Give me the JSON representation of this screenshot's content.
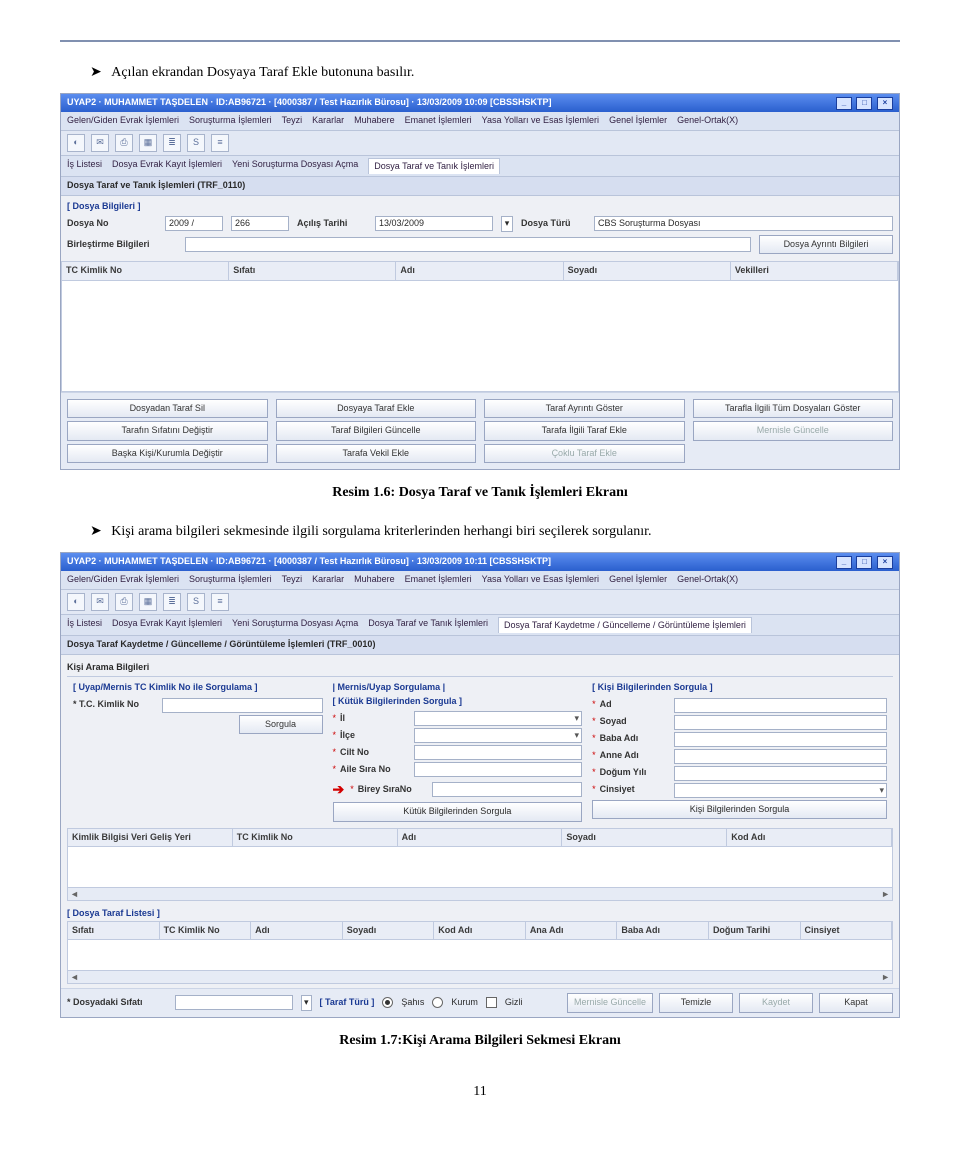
{
  "intro_bullet": "Açılan ekrandan Dosyaya Taraf Ekle butonuna basılır.",
  "caption1": "Resim 1.6: Dosya Taraf ve Tanık İşlemleri Ekranı",
  "mid_bullet": "Kişi arama bilgileri sekmesinde ilgili sorgulama kriterlerinden herhangi biri seçilerek sorgulanır.",
  "caption2": "Resim 1.7:Kişi Arama Bilgileri Sekmesi Ekranı",
  "page_number": "11",
  "s1": {
    "title": "UYAP2 · MUHAMMET TAŞDELEN · ID:AB96721 · [4000387 / Test Hazırlık Bürosu] · 13/03/2009 10:09 [CBSSHSKTP]",
    "menu": [
      "Gelen/Giden Evrak İşlemleri",
      "Soruşturma İşlemleri",
      "Teyzi",
      "Kararlar",
      "Muhabere",
      "Emanet İşlemleri",
      "Yasa Yolları ve Esas İşlemleri",
      "Genel İşlemler",
      "Genel-Ortak(X)"
    ],
    "tabs": [
      "İş Listesi",
      "Dosya Evrak Kayıt İşlemleri",
      "Yeni Soruşturma Dosyası Açma",
      "Dosya Taraf ve Tanık İşlemleri"
    ],
    "subtab": "Dosya Taraf ve Tanık İşlemleri (TRF_0110)",
    "group1": "[ Dosya Bilgileri ]",
    "dosya_no_label": "Dosya No",
    "dosya_no_year": "2009 /",
    "dosya_no_seq": "266",
    "acilis_label": "Açılış Tarihi",
    "acilis_val": "13/03/2009",
    "dosya_turu_label": "Dosya Türü",
    "dosya_turu_val": "CBS Soruşturma Dosyası",
    "birlestirme_label": "Birleştirme Bilgileri",
    "ayrinti_btn": "Dosya Ayrıntı Bilgileri",
    "cols": [
      "TC Kimlik No",
      "Sıfatı",
      "Adı",
      "Soyadı",
      "Vekilleri"
    ],
    "btns": [
      "Dosyadan Taraf Sil",
      "Dosyaya Taraf Ekle",
      "Taraf Ayrıntı Göster",
      "Tarafla İlgili Tüm Dosyaları Göster",
      "Tarafın Sıfatını Değiştir",
      "Taraf Bilgileri Güncelle",
      "Tarafa İlgili Taraf Ekle",
      "Mernisle Güncelle",
      "Başka Kişi/Kurumla Değiştir",
      "Tarafa Vekil Ekle",
      "Çoklu Taraf Ekle",
      ""
    ],
    "btn_disabled_index": [
      7,
      10
    ],
    "icons": [
      "◐",
      "✉",
      "⎙",
      "▦",
      "≣",
      "S",
      "≡"
    ]
  },
  "s2": {
    "title": "UYAP2 · MUHAMMET TAŞDELEN · ID:AB96721 · [4000387 / Test Hazırlık Bürosu] · 13/03/2009 10:11 [CBSSHSKTP]",
    "menu": [
      "Gelen/Giden Evrak İşlemleri",
      "Soruşturma İşlemleri",
      "Teyzi",
      "Kararlar",
      "Muhabere",
      "Emanet İşlemleri",
      "Yasa Yolları ve Esas İşlemleri",
      "Genel İşlemler",
      "Genel-Ortak(X)"
    ],
    "tabs": [
      "İş Listesi",
      "Dosya Evrak Kayıt İşlemleri",
      "Yeni Soruşturma Dosyası Açma",
      "Dosya Taraf ve Tanık İşlemleri",
      "Dosya Taraf Kaydetme / Güncelleme / Görüntüleme İşlemleri"
    ],
    "subtab": "Dosya Taraf Kaydetme / Güncelleme / Görüntüleme İşlemleri (TRF_0010)",
    "panel_title": "Kişi Arama Bilgileri",
    "col1_hd": "[ Uyap/Mernis TC Kimlik No ile Sorgulama ]",
    "tc_label": "* T.C. Kimlik No",
    "sorgula_btn": "Sorgula",
    "col2_hd": "| Mernis/Uyap Sorgulama |\n[ Kütük Bilgilerinden Sorgula ]",
    "col2_fields": [
      "İl",
      "İlçe",
      "Cilt No",
      "Aile Sıra No",
      "Birey SıraNo"
    ],
    "col2_btn": "Kütük Bilgilerinden Sorgula",
    "col3_hd": "[ Kişi Bilgilerinden Sorgula ]",
    "col3_fields": [
      "Ad",
      "Soyad",
      "Baba Adı",
      "Anne Adı",
      "Doğum Yılı",
      "Cinsiyet"
    ],
    "col3_btn": "Kişi Bilgilerinden Sorgula",
    "result_cols": [
      "Kimlik Bilgisi Veri Geliş Yeri",
      "TC Kimlik No",
      "Adı",
      "Soyadı",
      "Kod Adı"
    ],
    "list_caption": "[ Dosya Taraf Listesi ]",
    "list_cols": [
      "Sıfatı",
      "TC Kimlik No",
      "Adı",
      "Soyadı",
      "Kod Adı",
      "Ana Adı",
      "Baba Adı",
      "Doğum Tarihi",
      "Cinsiyet"
    ],
    "sifat_label": "* Dosyadaki Sıfatı",
    "taraf_turu_label": "[ Taraf Türü ]",
    "radios": [
      "Şahıs",
      "Kurum"
    ],
    "checkbox": "Gizli",
    "footer_btns": [
      "Mernisle Güncelle",
      "Temizle",
      "Kaydet",
      "Kapat"
    ],
    "footer_disabled": [
      0,
      2
    ]
  }
}
